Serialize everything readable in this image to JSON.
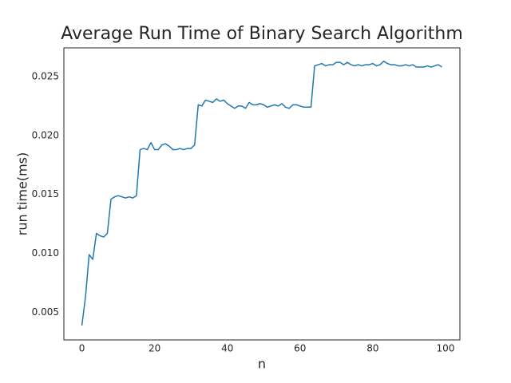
{
  "chart_data": {
    "type": "line",
    "title": "Average Run Time of Binary Search Algorithm",
    "xlabel": "n",
    "ylabel": "run time(ms)",
    "color": "#1f77b4",
    "x": [
      0,
      1,
      2,
      3,
      4,
      5,
      6,
      7,
      8,
      9,
      10,
      11,
      12,
      13,
      14,
      15,
      16,
      17,
      18,
      19,
      20,
      21,
      22,
      23,
      24,
      25,
      26,
      27,
      28,
      29,
      30,
      31,
      32,
      33,
      34,
      35,
      36,
      37,
      38,
      39,
      40,
      41,
      42,
      43,
      44,
      45,
      46,
      47,
      48,
      49,
      50,
      51,
      52,
      53,
      54,
      55,
      56,
      57,
      58,
      59,
      60,
      61,
      62,
      63,
      64,
      65,
      66,
      67,
      68,
      69,
      70,
      71,
      72,
      73,
      74,
      75,
      76,
      77,
      78,
      79,
      80,
      81,
      82,
      83,
      84,
      85,
      86,
      87,
      88,
      89,
      90,
      91,
      92,
      93,
      94,
      95,
      96,
      97,
      98,
      99
    ],
    "values": [
      0.00389,
      0.00634,
      0.0099,
      0.0095,
      0.0117,
      0.0115,
      0.0114,
      0.0117,
      0.0146,
      0.0148,
      0.0149,
      0.0148,
      0.0147,
      0.0148,
      0.0147,
      0.0149,
      0.0188,
      0.0189,
      0.0188,
      0.0194,
      0.0188,
      0.0188,
      0.0192,
      0.0193,
      0.0191,
      0.0188,
      0.0188,
      0.0189,
      0.0188,
      0.0189,
      0.0189,
      0.0192,
      0.0226,
      0.0225,
      0.023,
      0.0229,
      0.0228,
      0.0231,
      0.0229,
      0.023,
      0.0227,
      0.0225,
      0.0223,
      0.0225,
      0.0225,
      0.0223,
      0.0228,
      0.0226,
      0.0226,
      0.0227,
      0.0226,
      0.0224,
      0.0225,
      0.0226,
      0.0225,
      0.0227,
      0.0224,
      0.0223,
      0.0226,
      0.0226,
      0.0225,
      0.0224,
      0.0224,
      0.0224,
      0.0259,
      0.026,
      0.0261,
      0.0259,
      0.026,
      0.026,
      0.0262,
      0.0262,
      0.026,
      0.0262,
      0.026,
      0.0259,
      0.026,
      0.0259,
      0.026,
      0.026,
      0.0261,
      0.0259,
      0.026,
      0.0263,
      0.0261,
      0.026,
      0.026,
      0.0259,
      0.0259,
      0.026,
      0.0259,
      0.026,
      0.0258,
      0.0258,
      0.0258,
      0.0259,
      0.0258,
      0.0259,
      0.026,
      0.0258
    ],
    "xlim": [
      -4.95,
      103.95
    ],
    "ylim": [
      0.002675,
      0.027425
    ],
    "xticks": [
      0,
      20,
      40,
      60,
      80,
      100
    ],
    "yticks": [
      0.005,
      {
        "value": 0.01,
        "label": "0.010"
      },
      0.015,
      {
        "value": 0.02,
        "label": "0.020"
      },
      0.025
    ]
  }
}
